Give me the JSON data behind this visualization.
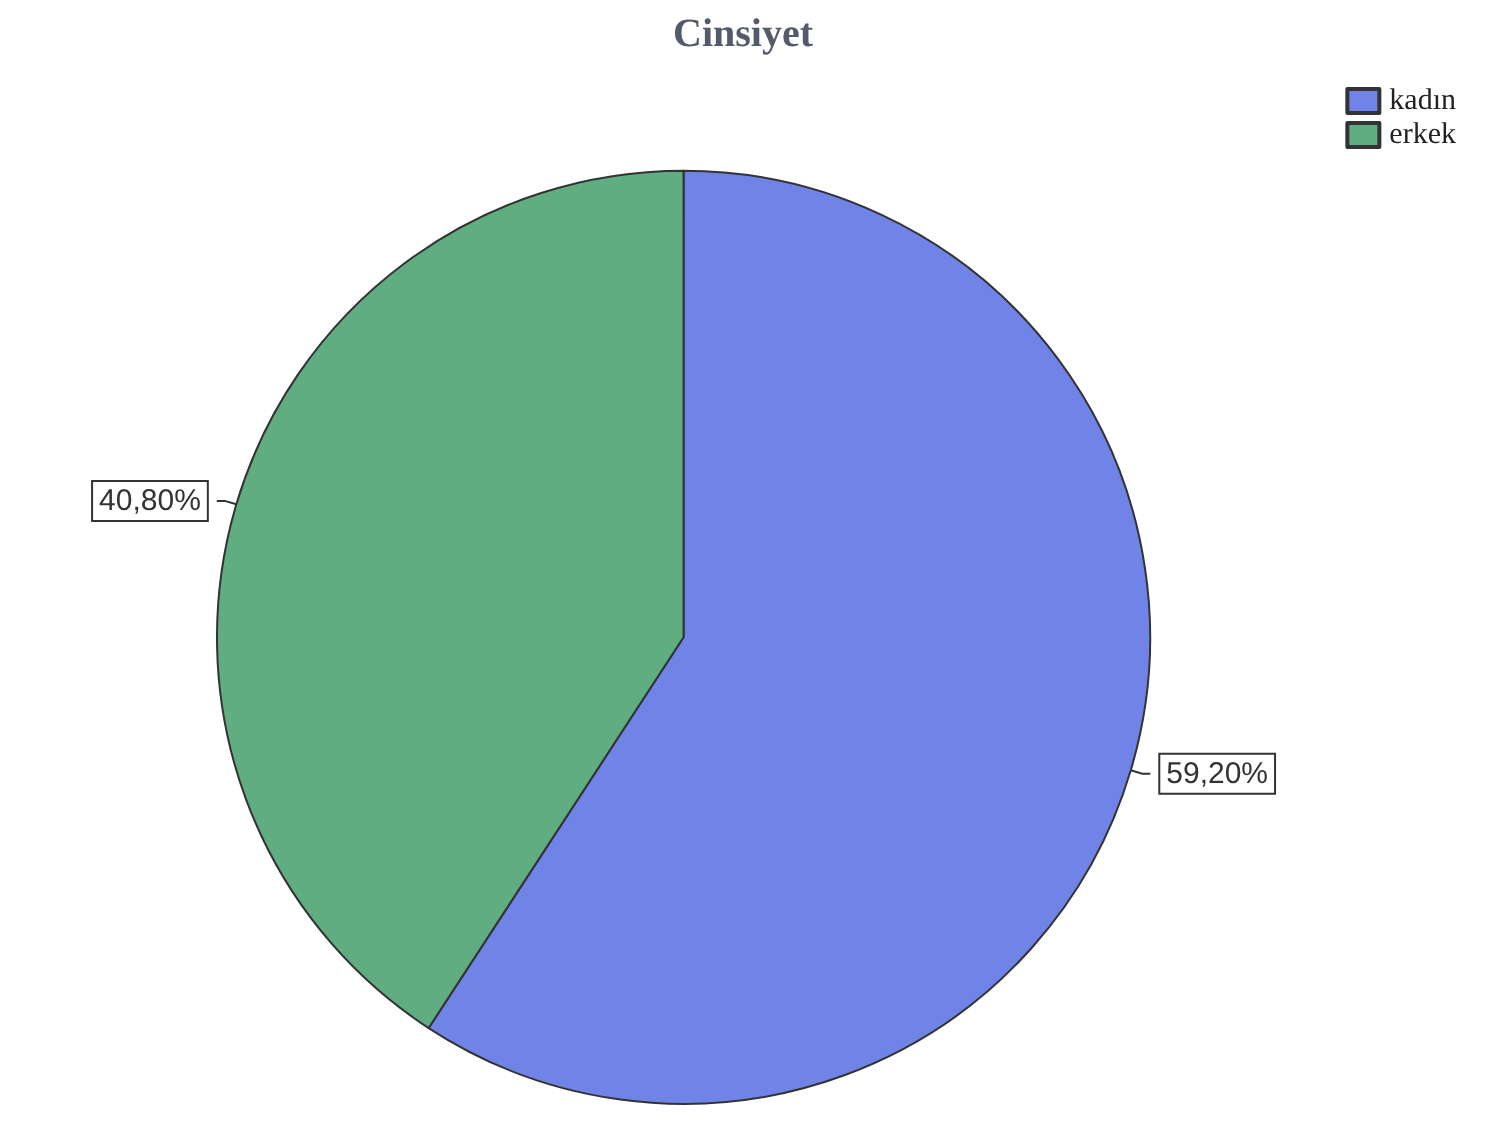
{
  "chart_data": {
    "type": "pie",
    "title": "Cinsiyet",
    "categories": [
      "kadın",
      "erkek"
    ],
    "values": [
      59.2,
      40.8
    ],
    "colors": [
      "#6f84e6",
      "#5fad80"
    ],
    "value_labels": [
      "59,20%",
      "40,80%"
    ],
    "legend": "top right"
  }
}
